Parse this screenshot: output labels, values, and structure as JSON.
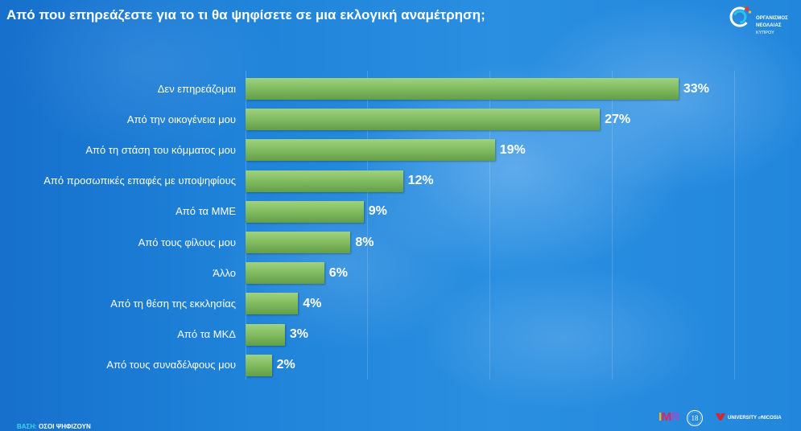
{
  "title": "Από που επηρεάζεστε για το τι θα ψηφίσετε σε μια εκλογική αναμέτρηση;",
  "org_logo": {
    "icon": "swirl-logo-icon",
    "line1": "ΟΡΓΑΝΙΣΜΟΣ",
    "line2": "ΝΕΟΛΑΙΑΣ",
    "line3": "ΚΥΠΡΟΥ"
  },
  "base_note": {
    "label": "ΒΑΣΗ:",
    "text": "ΟΣΟΙ ΨΗΦΙΖΟΥΝ"
  },
  "footer_logos": {
    "imr": {
      "i": "I",
      "m": "M",
      "r": "R"
    },
    "seal": "18",
    "university": {
      "part1": "UNIVERSITY",
      "part2": "of",
      "part3": "NICOSIA"
    }
  },
  "colors": {
    "background": "#2086dc",
    "bar_top": "#9fd27e",
    "bar": "#80bb60",
    "bar_bottom": "#639f49",
    "text": "#ffffff",
    "base_label": "#45d3f5",
    "university_red": "#d7262e"
  },
  "chart_data": {
    "type": "bar",
    "orientation": "horizontal",
    "categories": [
      "Δεν επηρεάζομαι",
      "Από την οικογένεια μου",
      "Από τη στάση του κόμματος μου",
      "Από προσωπικές επαφές με υποψηφίους",
      "Από τα ΜΜΕ",
      "Από τους φίλους μου",
      "Άλλο",
      "Από τη θέση της εκκλησίας",
      "Από τα ΜΚΔ",
      "Από τους συναδέλφους μου"
    ],
    "values": [
      33,
      27,
      19,
      12,
      9,
      8,
      6,
      4,
      3,
      2
    ],
    "data_labels": [
      "33%",
      "27%",
      "19%",
      "12%",
      "9%",
      "8%",
      "6%",
      "4%",
      "3%",
      "2%"
    ],
    "xlim": [
      0,
      40
    ],
    "grid": true,
    "legend": false
  }
}
